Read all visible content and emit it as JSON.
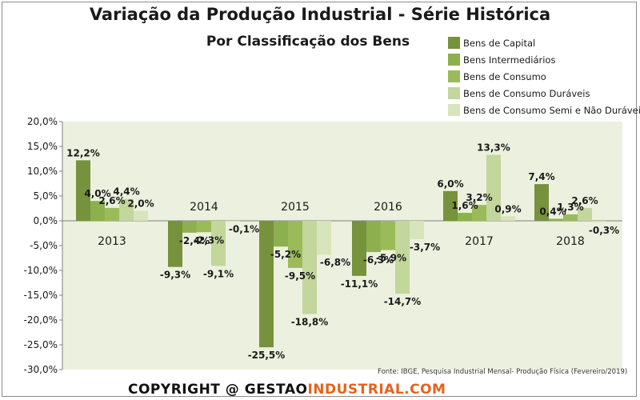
{
  "title": "Variação da Produção Industrial - Série Histórica",
  "subtitle": "Por Classificação dos Bens",
  "source": "Fonte: IBGE, Pesquisa Industrial Mensal- Produção Física  (Fevereiro/2019)",
  "copyright": {
    "prefix": "COPYRIGHT @ ",
    "part1": "GESTAO",
    "part2": "INDUSTRIAL.COM"
  },
  "colors": {
    "plot_bg": "#ebf1de",
    "series": [
      "#76923c",
      "#8db04f",
      "#9bbb59",
      "#c3d69b",
      "#d7e4bc"
    ]
  },
  "chart_data": {
    "type": "bar",
    "title": "Variação da Produção Industrial - Série Histórica",
    "subtitle": "Por Classificação dos Bens",
    "categories": [
      "2013",
      "2014",
      "2015",
      "2016",
      "2017",
      "2018"
    ],
    "series": [
      {
        "name": "Bens de Capital",
        "values": [
          12.2,
          -9.3,
          -25.5,
          -11.1,
          6.0,
          7.4
        ]
      },
      {
        "name": "Bens Intermediários",
        "values": [
          4.0,
          -2.4,
          -5.2,
          -6.3,
          1.6,
          0.4
        ]
      },
      {
        "name": "Bens de Consumo",
        "values": [
          2.6,
          -2.3,
          -9.5,
          -5.9,
          3.2,
          1.3
        ]
      },
      {
        "name": "Bens de Consumo Duráveis",
        "values": [
          4.4,
          -9.1,
          -18.8,
          -14.7,
          13.3,
          2.6
        ]
      },
      {
        "name": "Bens de Consumo Semi e Não Duráveis",
        "values": [
          2.0,
          -0.1,
          -6.8,
          -3.7,
          0.9,
          -0.3
        ]
      }
    ],
    "data_labels": [
      [
        "12,2%",
        "-9,3%",
        "-25,5%",
        "-11,1%",
        "6,0%",
        "7,4%"
      ],
      [
        "4,0%",
        "-2,4%",
        "-5,2%",
        "-6,3%",
        "1,6%",
        "0,4%"
      ],
      [
        "2,6%",
        "-2,3%",
        "-9,5%",
        "-5,9%",
        "3,2%",
        "1,3%"
      ],
      [
        "4,4%",
        "-9,1%",
        "-18,8%",
        "-14,7%",
        "13,3%",
        "2,6%"
      ],
      [
        "2,0%",
        "-0,1%",
        "-6,8%",
        "-3,7%",
        "0,9%",
        "-0,3%"
      ]
    ],
    "y_ticks": [
      20,
      15,
      10,
      5,
      0,
      -5,
      -10,
      -15,
      -20,
      -25,
      -30
    ],
    "y_tick_labels": [
      "20,0%",
      "15,0%",
      "10,0%",
      "5,0%",
      "0,0%",
      "-5,0%",
      "-10,0%",
      "-15,0%",
      "-20,0%",
      "-25,0%",
      "-30,0%"
    ],
    "ylim": [
      -30,
      20
    ],
    "grid": false,
    "legend_position": "top-right"
  }
}
